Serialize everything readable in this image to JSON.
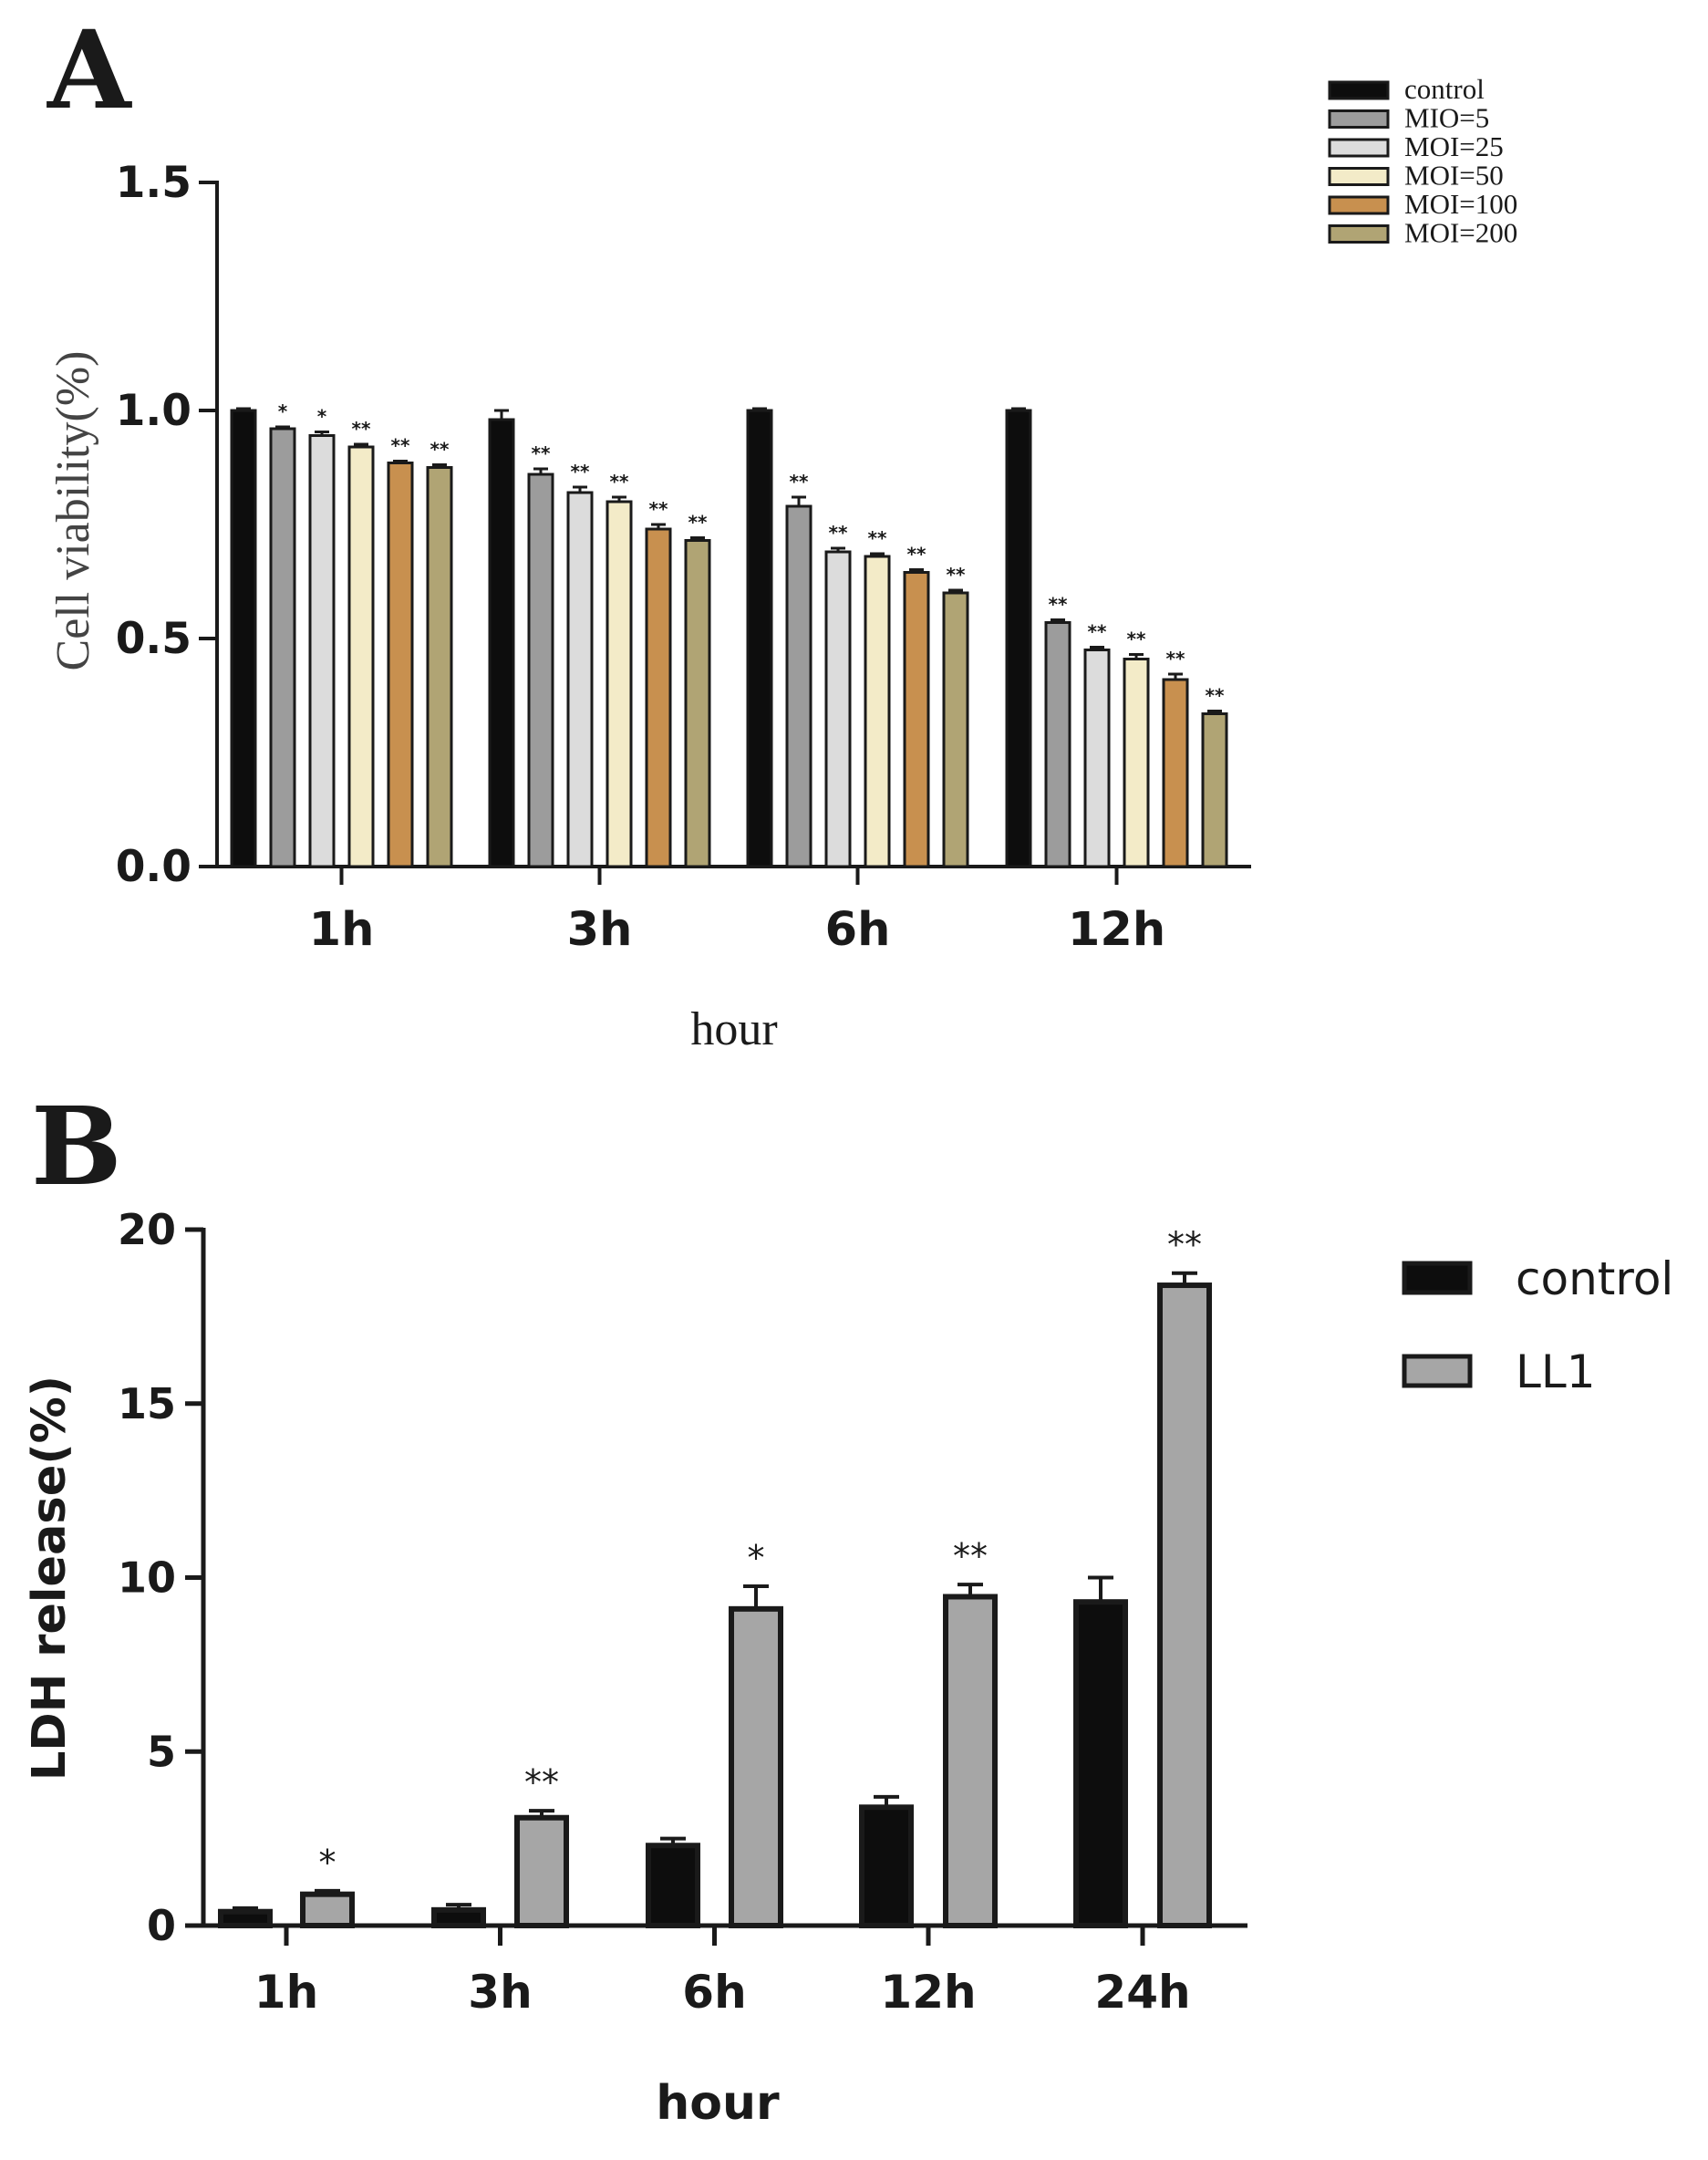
{
  "chart_data": [
    {
      "panel": "A",
      "type": "bar",
      "ylabel": "Cell viability(%)",
      "xlabel": "hour",
      "ylim": [
        0,
        1.5
      ],
      "yticks": [
        "0.0",
        "0.5",
        "1.0",
        "1.5"
      ],
      "categories": [
        "1h",
        "3h",
        "6h",
        "12h"
      ],
      "series": [
        {
          "name": "control",
          "color": "#0d0d0d",
          "values": [
            1.0,
            0.98,
            1.0,
            1.0
          ],
          "errors": [
            0.004,
            0.02,
            0.004,
            0.004
          ],
          "stars": [
            "",
            "",
            "",
            ""
          ]
        },
        {
          "name": "MIO=5",
          "color": "#9c9c9c",
          "values": [
            0.96,
            0.86,
            0.79,
            0.535
          ],
          "errors": [
            0.004,
            0.012,
            0.02,
            0.006
          ],
          "stars": [
            "*",
            "**",
            "**",
            "**"
          ]
        },
        {
          "name": "MOI=25",
          "color": "#dcdcdc",
          "values": [
            0.945,
            0.82,
            0.69,
            0.475
          ],
          "errors": [
            0.008,
            0.012,
            0.008,
            0.006
          ],
          "stars": [
            "*",
            "**",
            "**",
            "**"
          ]
        },
        {
          "name": "MOI=50",
          "color": "#f3ebc8",
          "values": [
            0.92,
            0.8,
            0.68,
            0.455
          ],
          "errors": [
            0.006,
            0.01,
            0.006,
            0.01
          ],
          "stars": [
            "**",
            "**",
            "**",
            "**"
          ]
        },
        {
          "name": "MOI=100",
          "color": "#c8904f",
          "values": [
            0.885,
            0.74,
            0.645,
            0.41
          ],
          "errors": [
            0.004,
            0.01,
            0.006,
            0.012
          ],
          "stars": [
            "**",
            "**",
            "**",
            "**"
          ]
        },
        {
          "name": "MOI=200",
          "color": "#b0a474",
          "values": [
            0.875,
            0.715,
            0.6,
            0.335
          ],
          "errors": [
            0.006,
            0.006,
            0.006,
            0.006
          ],
          "stars": [
            "**",
            "**",
            "**",
            "**"
          ]
        }
      ]
    },
    {
      "panel": "B",
      "type": "bar",
      "ylabel": "LDH release(%)",
      "xlabel": "hour",
      "ylim": [
        0,
        20
      ],
      "yticks": [
        "0",
        "5",
        "10",
        "15",
        "20"
      ],
      "categories": [
        "1h",
        "3h",
        "6h",
        "12h",
        "24h"
      ],
      "series": [
        {
          "name": "control",
          "color": "#0d0d0d",
          "values": [
            0.4,
            0.45,
            2.3,
            3.4,
            9.3
          ],
          "errors": [
            0.1,
            0.15,
            0.2,
            0.3,
            0.7
          ],
          "stars": [
            "",
            "",
            "",
            "",
            ""
          ]
        },
        {
          "name": "LL1",
          "color": "#a6a6a6",
          "values": [
            0.9,
            3.1,
            9.1,
            9.45,
            18.4
          ],
          "errors": [
            0.1,
            0.2,
            0.65,
            0.35,
            0.35
          ],
          "stars": [
            "*",
            "**",
            "*",
            "**",
            "**"
          ]
        }
      ]
    }
  ]
}
